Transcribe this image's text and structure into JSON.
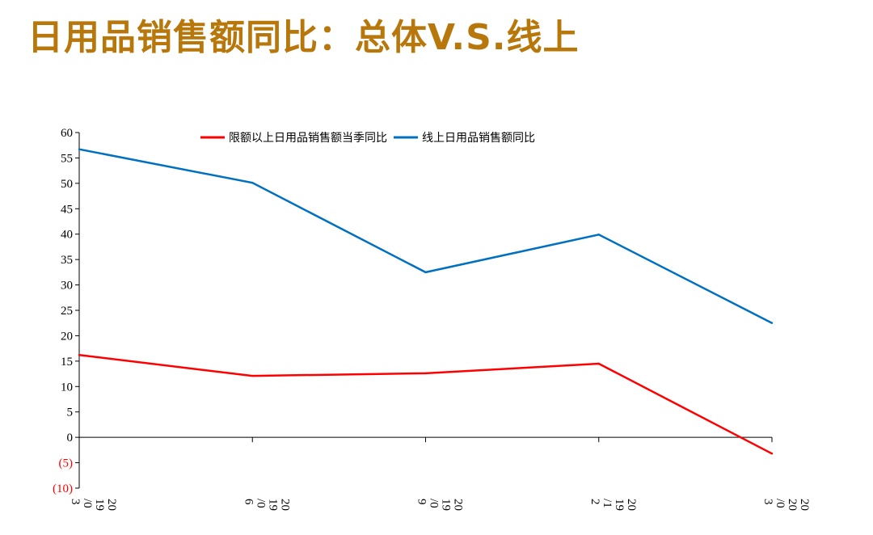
{
  "slide": {
    "title": "日用品销售额同比：总体V.S.线上"
  },
  "colors": {
    "title": "#B8770B",
    "series_red": "#FF0000",
    "series_blue": "#0070C0",
    "negative_tick": "#FF0000"
  },
  "chart_data": {
    "type": "line",
    "title": "",
    "xlabel": "",
    "ylabel": "",
    "ylim": [
      -10,
      60
    ],
    "yticks": [
      60,
      55,
      50,
      45,
      40,
      35,
      30,
      25,
      20,
      15,
      10,
      5,
      0,
      -5,
      -10
    ],
    "ytick_labels": [
      "60",
      "55",
      "50",
      "45",
      "40",
      "35",
      "30",
      "25",
      "20",
      "15",
      "10",
      "5",
      "0",
      "(5)",
      "(10)"
    ],
    "categories": [
      "2019/03",
      "2019/06",
      "2019/09",
      "2019/12",
      "2020/03"
    ],
    "category_label_lines": [
      [
        "20",
        "19",
        "/0",
        "3"
      ],
      [
        "20",
        "19",
        "/0",
        "6"
      ],
      [
        "20",
        "19",
        "/0",
        "9"
      ],
      [
        "20",
        "19",
        "/1",
        "2"
      ],
      [
        "20",
        "20",
        "/0",
        "3"
      ]
    ],
    "legend_position": "top",
    "grid": false,
    "series": [
      {
        "name": "限额以上日用品销售额当季同比",
        "color": "#FF0000",
        "values": [
          16.2,
          12.1,
          12.6,
          14.5,
          -3.2
        ]
      },
      {
        "name": "线上日用品销售额同比",
        "color": "#0070C0",
        "values": [
          56.7,
          50.1,
          32.5,
          39.9,
          22.5
        ]
      }
    ]
  }
}
